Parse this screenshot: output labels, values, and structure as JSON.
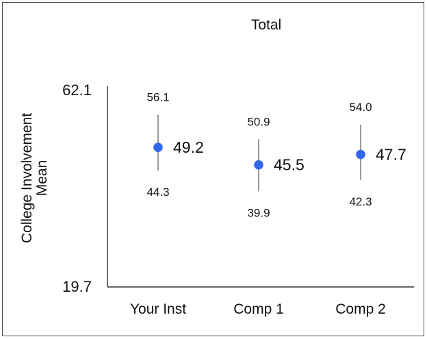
{
  "chart_data": {
    "type": "scatter",
    "title": "Total",
    "ylabel_lines": [
      "College Involvement",
      "Mean"
    ],
    "xlabel": "",
    "categories": [
      "Your Inst",
      "Comp 1",
      "Comp 2"
    ],
    "y_axis_ticks": [
      "62.1",
      "19.7"
    ],
    "ylim": [
      19.7,
      62.1
    ],
    "series": [
      {
        "values": [
          49.2,
          45.5,
          47.7
        ],
        "upper": [
          56.1,
          50.9,
          54.0
        ],
        "lower": [
          44.3,
          39.9,
          42.3
        ],
        "value_labels": [
          "49.2",
          "45.5",
          "47.7"
        ],
        "upper_labels": [
          "56.1",
          "50.9",
          "54.0"
        ],
        "lower_labels": [
          "44.3",
          "39.9",
          "42.3"
        ]
      }
    ],
    "grid": false,
    "legend": "none",
    "colors": {
      "point": "#3366ee",
      "errorbar": "#555555",
      "axis": "#333333",
      "text": "#111111"
    }
  }
}
